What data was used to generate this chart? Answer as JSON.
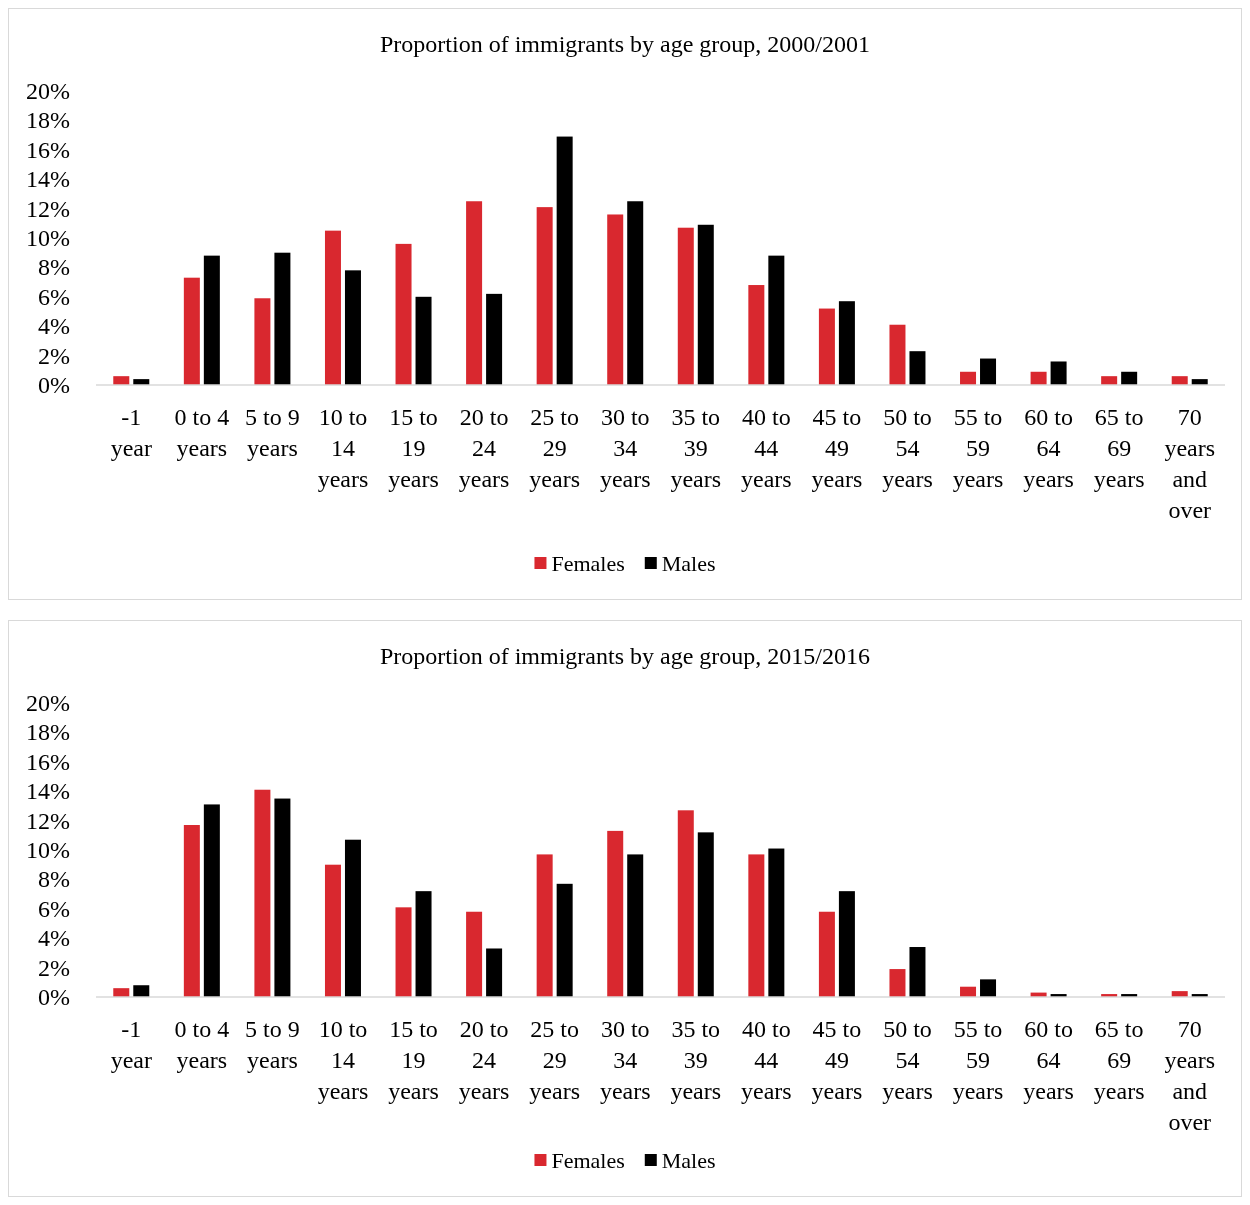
{
  "chart_data": [
    {
      "type": "bar",
      "title": "Proportion of immigrants by age group, 2000/2001",
      "categories": [
        "-1 year",
        "0 to 4 years",
        "5 to 9 years",
        "10 to 14 years",
        "15 to 19 years",
        "20 to 24 years",
        "25 to 29 years",
        "30 to 34 years",
        "35 to 39 years",
        "40 to 44 years",
        "45 to 49 years",
        "50 to 54 years",
        "55 to 59 years",
        "60 to 64 years",
        "65 to 69 years",
        "70 years and over"
      ],
      "series": [
        {
          "name": "Females",
          "color": "#d9282f",
          "values": [
            0.6,
            7.3,
            5.9,
            10.5,
            9.6,
            12.5,
            12.1,
            11.6,
            10.7,
            6.8,
            5.2,
            4.1,
            0.9,
            0.9,
            0.6,
            0.6
          ]
        },
        {
          "name": "Males",
          "color": "#000000",
          "values": [
            0.4,
            8.8,
            9.0,
            7.8,
            6.0,
            6.2,
            16.9,
            12.5,
            10.9,
            8.8,
            5.7,
            2.3,
            1.8,
            1.6,
            0.9,
            0.4
          ]
        }
      ],
      "ylim": [
        0,
        20
      ],
      "yticks": [
        {
          "value": 0,
          "label": "0%"
        },
        {
          "value": 2,
          "label": "2%"
        },
        {
          "value": 4,
          "label": "4%"
        },
        {
          "value": 6,
          "label": "6%"
        },
        {
          "value": 8,
          "label": "8%"
        },
        {
          "value": 10,
          "label": "10%"
        },
        {
          "value": 12,
          "label": "12%"
        },
        {
          "value": 14,
          "label": "14%"
        },
        {
          "value": 16,
          "label": "16%"
        },
        {
          "value": 18,
          "label": "18%"
        },
        {
          "value": 20,
          "label": "20%"
        }
      ],
      "legend": "bottom"
    },
    {
      "type": "bar",
      "title": "Proportion of immigrants by age group, 2015/2016",
      "categories": [
        "-1 year",
        "0 to 4 years",
        "5 to 9 years",
        "10 to 14 years",
        "15 to 19 years",
        "20 to 24 years",
        "25 to 29 years",
        "30 to 34 years",
        "35 to 39 years",
        "40 to 44 years",
        "45 to 49 years",
        "50 to 54 years",
        "55 to 59 years",
        "60 to 64 years",
        "65 to 69 years",
        "70 years and over"
      ],
      "series": [
        {
          "name": "Females",
          "color": "#d9282f",
          "values": [
            0.6,
            11.7,
            14.1,
            9.0,
            6.1,
            5.8,
            9.7,
            11.3,
            12.7,
            9.7,
            5.8,
            1.9,
            0.7,
            0.3,
            0.2,
            0.4
          ]
        },
        {
          "name": "Males",
          "color": "#000000",
          "values": [
            0.8,
            13.1,
            13.5,
            10.7,
            7.2,
            3.3,
            7.7,
            9.7,
            11.2,
            10.1,
            7.2,
            3.4,
            1.2,
            0.2,
            0.2,
            0.2
          ]
        }
      ],
      "ylim": [
        0,
        20
      ],
      "yticks": [
        {
          "value": 0,
          "label": "0%"
        },
        {
          "value": 2,
          "label": "2%"
        },
        {
          "value": 4,
          "label": "4%"
        },
        {
          "value": 6,
          "label": "6%"
        },
        {
          "value": 8,
          "label": "8%"
        },
        {
          "value": 10,
          "label": "10%"
        },
        {
          "value": 12,
          "label": "12%"
        },
        {
          "value": 14,
          "label": "14%"
        },
        {
          "value": 16,
          "label": "16%"
        },
        {
          "value": 18,
          "label": "18%"
        },
        {
          "value": 20,
          "label": "20%"
        }
      ],
      "legend": "bottom"
    }
  ]
}
